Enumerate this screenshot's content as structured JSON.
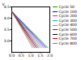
{
  "chart_data": {
    "type": "line",
    "y_label": "V",
    "xlim": [
      0,
      2
    ],
    "xticks": [
      0,
      0.5,
      1,
      1.5,
      2
    ],
    "ylim": [
      2.5,
      4.5
    ],
    "yticks": [
      3,
      3.5,
      4,
      4.5
    ],
    "series": [
      {
        "name": "Cycle 50",
        "color": "#00a000",
        "x": [
          0,
          1.9
        ],
        "values": [
          4.3,
          2.7
        ]
      },
      {
        "name": "Cycle 100",
        "color": "#0000ff",
        "x": [
          0,
          1.8
        ],
        "values": [
          4.3,
          2.7
        ]
      },
      {
        "name": "Cycle 200",
        "color": "#ff00ff",
        "x": [
          0,
          1.7
        ],
        "values": [
          4.3,
          2.7
        ]
      },
      {
        "name": "Cycle 300",
        "color": "#00c0c0",
        "x": [
          0,
          1.6
        ],
        "values": [
          4.3,
          2.7
        ]
      },
      {
        "name": "Cycle 400",
        "color": "#a0a000",
        "x": [
          0,
          1.5
        ],
        "values": [
          4.3,
          2.7
        ]
      },
      {
        "name": "Cycle 500",
        "color": "#8000c0",
        "x": [
          0,
          1.4
        ],
        "values": [
          4.3,
          2.7
        ]
      },
      {
        "name": "Cycle 600",
        "color": "#000000",
        "x": [
          0,
          1.3
        ],
        "values": [
          4.3,
          2.7
        ]
      },
      {
        "name": "Cycle 700",
        "color": "#ff0000",
        "x": [
          0,
          1.2
        ],
        "values": [
          4.3,
          2.7
        ]
      },
      {
        "name": "Cycle 800",
        "color": "#808080",
        "x": [
          0,
          1.1
        ],
        "values": [
          4.3,
          2.7
        ]
      }
    ]
  }
}
